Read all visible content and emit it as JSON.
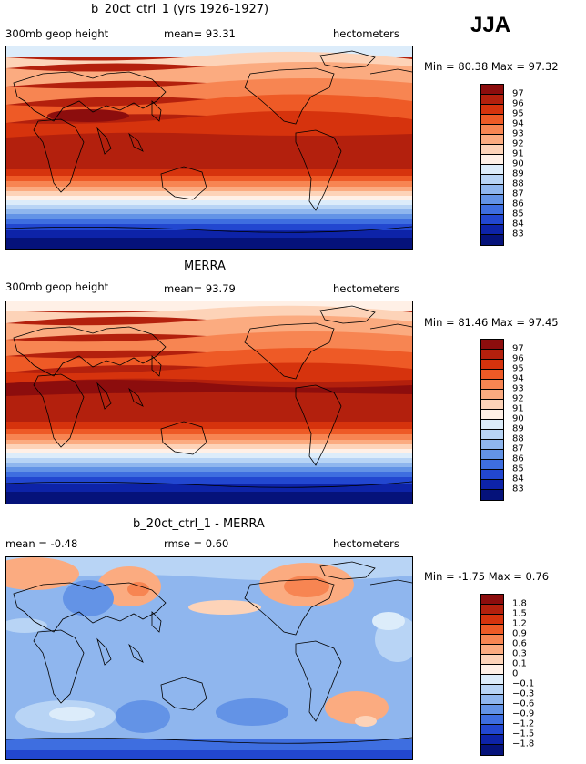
{
  "season": "JJA",
  "panels": [
    {
      "title": "b_20ct_ctrl_1 (yrs 1926-1927)",
      "left_label": "300mb geop height",
      "mid_label": "mean=  93.31",
      "units": "hectometers",
      "minmax": "Min =  80.38 Max =  97.32",
      "colorbar": [
        {
          "label": "97",
          "color": "#8c0d0d"
        },
        {
          "label": "96",
          "color": "#b3200d"
        },
        {
          "label": "95",
          "color": "#d6330d"
        },
        {
          "label": "94",
          "color": "#ee5a26"
        },
        {
          "label": "93",
          "color": "#f78552"
        },
        {
          "label": "92",
          "color": "#fbab80"
        },
        {
          "label": "91",
          "color": "#fdd3b8"
        },
        {
          "label": "90",
          "color": "#fff0e6"
        },
        {
          "label": "89",
          "color": "#dcecfa"
        },
        {
          "label": "88",
          "color": "#b8d4f5"
        },
        {
          "label": "87",
          "color": "#8fb6ee"
        },
        {
          "label": "86",
          "color": "#6393e6"
        },
        {
          "label": "85",
          "color": "#3e6ee0"
        },
        {
          "label": "84",
          "color": "#2247d0"
        },
        {
          "label": "83",
          "color": "#0d23a8"
        },
        {
          "label": "",
          "color": "#05127a"
        }
      ]
    },
    {
      "title": "MERRA",
      "left_label": "300mb geop height",
      "mid_label": "mean=  93.79",
      "units": "hectometers",
      "minmax": "Min =  81.46 Max =  97.45",
      "colorbar": [
        {
          "label": "97",
          "color": "#8c0d0d"
        },
        {
          "label": "96",
          "color": "#b3200d"
        },
        {
          "label": "95",
          "color": "#d6330d"
        },
        {
          "label": "94",
          "color": "#ee5a26"
        },
        {
          "label": "93",
          "color": "#f78552"
        },
        {
          "label": "92",
          "color": "#fbab80"
        },
        {
          "label": "91",
          "color": "#fdd3b8"
        },
        {
          "label": "90",
          "color": "#fff0e6"
        },
        {
          "label": "89",
          "color": "#dcecfa"
        },
        {
          "label": "88",
          "color": "#b8d4f5"
        },
        {
          "label": "87",
          "color": "#8fb6ee"
        },
        {
          "label": "86",
          "color": "#6393e6"
        },
        {
          "label": "85",
          "color": "#3e6ee0"
        },
        {
          "label": "84",
          "color": "#2247d0"
        },
        {
          "label": "83",
          "color": "#0d23a8"
        },
        {
          "label": "",
          "color": "#05127a"
        }
      ]
    },
    {
      "title": "b_20ct_ctrl_1 - MERRA",
      "left_label": "mean =  -0.48",
      "mid_label": "rmse =   0.60",
      "units": "hectometers",
      "minmax": "Min =  -1.75 Max =   0.76",
      "colorbar": [
        {
          "label": "1.8",
          "color": "#8c0d0d"
        },
        {
          "label": "1.5",
          "color": "#b3200d"
        },
        {
          "label": "1.2",
          "color": "#d6330d"
        },
        {
          "label": "0.9",
          "color": "#ee5a26"
        },
        {
          "label": "0.6",
          "color": "#f78552"
        },
        {
          "label": "0.3",
          "color": "#fbab80"
        },
        {
          "label": "0.1",
          "color": "#fdd3b8"
        },
        {
          "label": "0",
          "color": "#fff0e6"
        },
        {
          "label": "−0.1",
          "color": "#dcecfa"
        },
        {
          "label": "−0.3",
          "color": "#b8d4f5"
        },
        {
          "label": "−0.6",
          "color": "#8fb6ee"
        },
        {
          "label": "−0.9",
          "color": "#6393e6"
        },
        {
          "label": "−1.2",
          "color": "#3e6ee0"
        },
        {
          "label": "−1.5",
          "color": "#2247d0"
        },
        {
          "label": "−1.8",
          "color": "#0d23a8"
        },
        {
          "label": "",
          "color": "#05127a"
        }
      ]
    }
  ],
  "chart_data": {
    "type": "heatmap",
    "variable": "300mb geop height",
    "units": "hectometers",
    "season": "JJA",
    "panels": [
      {
        "title": "b_20ct_ctrl_1 (yrs 1926-1927)",
        "mean": 93.31,
        "min": 80.38,
        "max": 97.32,
        "levels": [
          83,
          84,
          85,
          86,
          87,
          88,
          89,
          90,
          91,
          92,
          93,
          94,
          95,
          96,
          97
        ]
      },
      {
        "title": "MERRA",
        "mean": 93.79,
        "min": 81.46,
        "max": 97.45,
        "levels": [
          83,
          84,
          85,
          86,
          87,
          88,
          89,
          90,
          91,
          92,
          93,
          94,
          95,
          96,
          97
        ]
      },
      {
        "title": "b_20ct_ctrl_1 - MERRA",
        "mean": -0.48,
        "rmse": 0.6,
        "min": -1.75,
        "max": 0.76,
        "levels": [
          -1.8,
          -1.5,
          -1.2,
          -0.9,
          -0.6,
          -0.3,
          -0.1,
          0,
          0.1,
          0.3,
          0.6,
          0.9,
          1.2,
          1.5,
          1.8
        ]
      }
    ]
  }
}
